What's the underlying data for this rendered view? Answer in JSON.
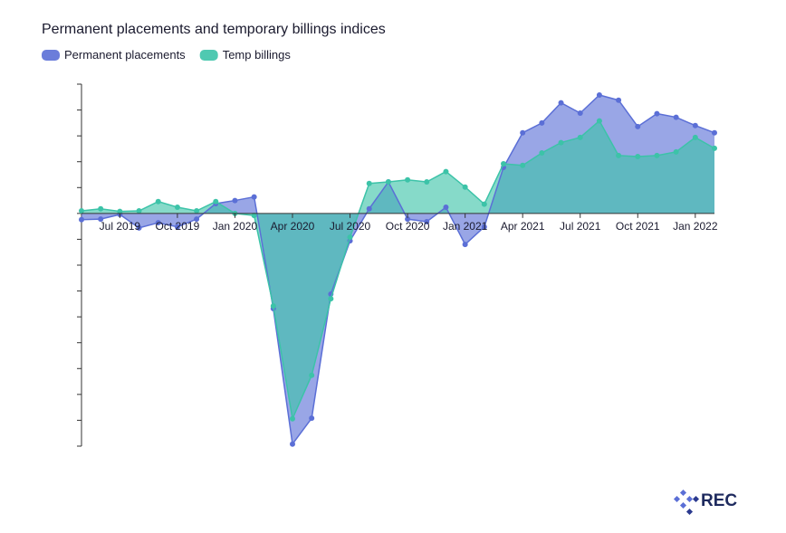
{
  "chart_data": {
    "type": "area",
    "title": "Permanent placements and temporary billings indices",
    "categories": [
      null,
      null,
      "Jul 2019",
      null,
      null,
      "Oct 2019",
      null,
      null,
      "Jan 2020",
      null,
      null,
      "Apr 2020",
      null,
      null,
      "Jul 2020",
      null,
      null,
      "Oct 2020",
      null,
      null,
      "Jan 2021",
      null,
      null,
      "Apr 2021",
      null,
      null,
      "Jul 2021",
      null,
      null,
      "Oct 2021",
      null,
      null,
      "Jan 2022",
      null
    ],
    "series": [
      {
        "name": "Permanent placements",
        "color": "#5b6fd6",
        "values": [
          -1.2,
          -1.1,
          -0.2,
          -2.8,
          -1.8,
          -2.6,
          -1.1,
          1.9,
          2.5,
          3.2,
          -18.4,
          -44.6,
          -39.6,
          -15.6,
          -5.3,
          0.9,
          6.1,
          -1.1,
          -1.6,
          1.2,
          -6.0,
          -2.6,
          8.9,
          15.6,
          17.5,
          21.4,
          19.4,
          22.9,
          21.9,
          16.8,
          19.3,
          18.6,
          17.0,
          15.6
        ]
      },
      {
        "name": "Temp billings",
        "color": "#3cc3a8",
        "values": [
          0.5,
          0.9,
          0.4,
          0.5,
          2.3,
          1.2,
          0.5,
          2.3,
          0,
          -0.4,
          -17.9,
          -39.7,
          -31.3,
          -16.5,
          -4.6,
          5.8,
          6.1,
          6.5,
          6.1,
          8.1,
          5.1,
          1.8,
          9.6,
          9.3,
          11.7,
          13.7,
          14.7,
          17.9,
          11.2,
          11.0,
          11.2,
          11.9,
          14.7,
          12.6
        ]
      }
    ],
    "ylim": [
      -45,
      25
    ],
    "yticks": [
      -45,
      -40,
      -35,
      -30,
      -25,
      -20,
      -15,
      -10,
      -5,
      0,
      5,
      10,
      15,
      20,
      25
    ]
  },
  "logo": "REC"
}
